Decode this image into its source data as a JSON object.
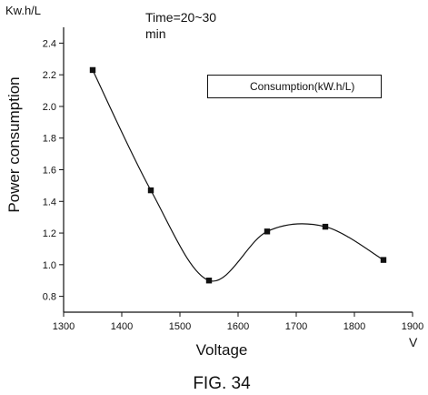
{
  "chart_data": {
    "type": "scatter",
    "title": "",
    "caption": "FIG. 34",
    "annotation_line1": "Time=20~30",
    "annotation_line2": "min",
    "xlabel": "Voltage",
    "x_unit": "V",
    "ylabel": "Power consumption",
    "y_unit": "Kw.h/L",
    "xlim": [
      1300,
      1900
    ],
    "ylim": [
      0.7,
      2.5
    ],
    "x_ticks": [
      1300,
      1400,
      1500,
      1600,
      1700,
      1800,
      1900
    ],
    "y_ticks": [
      0.8,
      1.0,
      1.2,
      1.4,
      1.6,
      1.8,
      2.0,
      2.2,
      2.4
    ],
    "legend_position": "top-right",
    "grid": false,
    "series": [
      {
        "name": "Consumption(kW.h/L)",
        "marker": "square",
        "x": [
          1350,
          1450,
          1550,
          1650,
          1750,
          1850
        ],
        "y": [
          2.23,
          1.47,
          0.9,
          1.21,
          1.24,
          1.03
        ],
        "fit_curve": true
      }
    ]
  }
}
